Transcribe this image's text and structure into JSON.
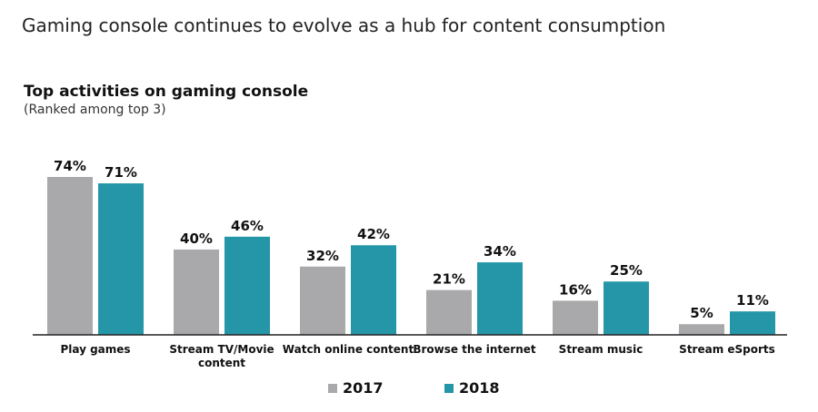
{
  "headline": "Gaming console continues to evolve as a hub for content consumption",
  "chart_data": {
    "type": "bar",
    "title": "Top activities on gaming console",
    "subtitle": "(Ranked among top 3)",
    "categories": [
      [
        "Play games"
      ],
      [
        "Stream TV/Movie",
        "content"
      ],
      [
        "Watch online content"
      ],
      [
        "Browse the internet"
      ],
      [
        "Stream music"
      ],
      [
        "Stream eSports"
      ]
    ],
    "series": [
      {
        "name": "2017",
        "color": "#a9a9ab",
        "values": [
          74,
          40,
          32,
          21,
          16,
          5
        ],
        "labels": [
          "74%",
          "40%",
          "32%",
          "21%",
          "16%",
          "5%"
        ]
      },
      {
        "name": "2018",
        "color": "#2596a8",
        "values": [
          71,
          46,
          42,
          34,
          25,
          11
        ],
        "labels": [
          "71%",
          "46%",
          "42%",
          "34%",
          "25%",
          "11%"
        ]
      }
    ],
    "ylim": [
      0,
      74
    ],
    "legend_position": "bottom-center"
  }
}
